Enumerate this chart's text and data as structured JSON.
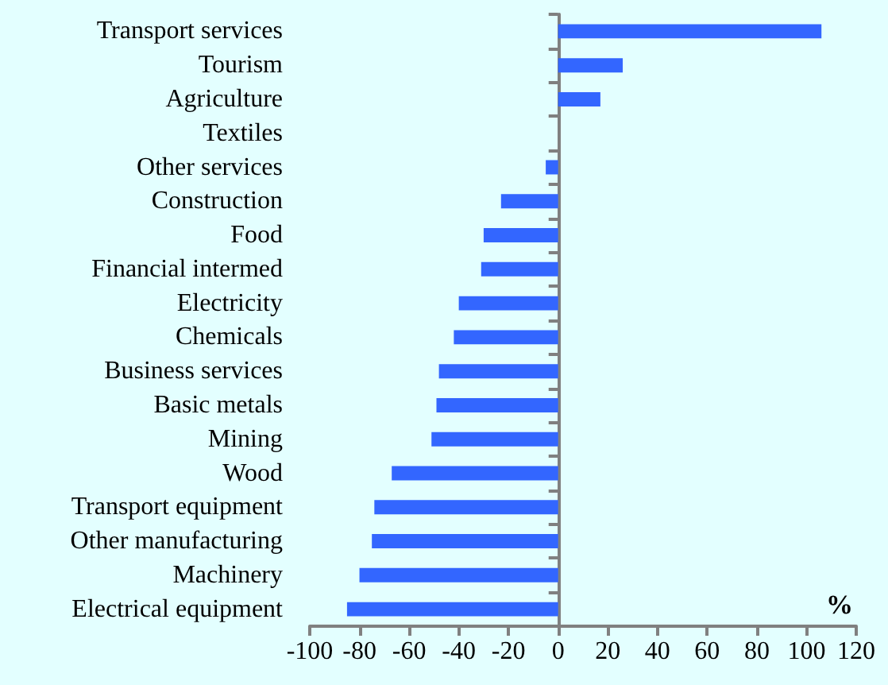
{
  "chart_data": {
    "type": "bar",
    "orientation": "horizontal",
    "categories": [
      "Transport services",
      "Tourism",
      "Agriculture",
      "Textiles",
      "Other services",
      "Construction",
      "Food",
      "Financial intermed",
      "Electricity",
      "Chemicals",
      "Business services",
      "Basic metals",
      "Mining",
      "Wood",
      "Transport equipment",
      "Other manufacturing",
      "Machinery",
      "Electrical equipment"
    ],
    "values": [
      106,
      26,
      17,
      0,
      -5,
      -23,
      -30,
      -31,
      -40,
      -42,
      -48,
      -49,
      -51,
      -67,
      -74,
      -75,
      -80,
      -85
    ],
    "color": "#3366ff",
    "xlim": [
      -100,
      120
    ],
    "xticks": [
      -100,
      -80,
      -60,
      -40,
      -20,
      0,
      20,
      40,
      60,
      80,
      100,
      120
    ],
    "annotations": [
      "%"
    ]
  }
}
